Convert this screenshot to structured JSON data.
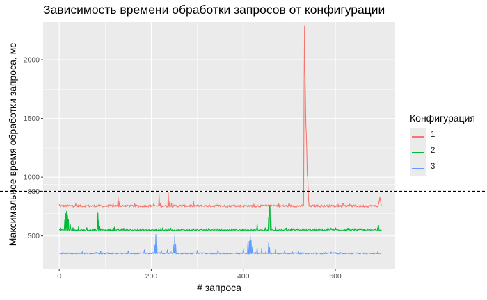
{
  "chart_data": {
    "type": "line",
    "title": "Зависимость времени обработки запросов от конфигурации",
    "xlabel": "# запроса",
    "ylabel": "Максимальное время обработки запроса, мс",
    "xlim": [
      -35,
      730
    ],
    "ylim": [
      220,
      2320
    ],
    "x_ticks": [
      0,
      200,
      400,
      600
    ],
    "y_ticks": [
      500,
      880,
      1000,
      1500,
      2000
    ],
    "y_tick_labels": [
      "500",
      "880",
      "1000",
      "1500",
      "2000"
    ],
    "reference_line": {
      "y": 880,
      "style": "dashed",
      "color": "#000000"
    },
    "grid": true,
    "background": "#ebebeb",
    "legend": {
      "title": "Конфигурация",
      "position": "right"
    },
    "n_points": 701,
    "series": [
      {
        "name": "1",
        "color": "#f8766d",
        "baseline": 755,
        "noise": 10,
        "spikes": [
          [
            0,
            770
          ],
          [
            3,
            745
          ],
          [
            128,
            830
          ],
          [
            130,
            790
          ],
          [
            217,
            855
          ],
          [
            220,
            780
          ],
          [
            237,
            870
          ],
          [
            240,
            790
          ],
          [
            532,
            1720
          ],
          [
            533,
            2290
          ],
          [
            534,
            1900
          ],
          [
            535,
            1700
          ],
          [
            536,
            1440
          ],
          [
            537,
            1360
          ],
          [
            538,
            1220
          ],
          [
            539,
            1020
          ],
          [
            540,
            1000
          ],
          [
            541,
            880
          ],
          [
            542,
            800
          ],
          [
            694,
            770
          ],
          [
            695,
            790
          ],
          [
            696,
            810
          ],
          [
            697,
            830
          ],
          [
            698,
            800
          ],
          [
            699,
            780
          ]
        ]
      },
      {
        "name": "2",
        "color": "#00ba38",
        "baseline": 550,
        "noise": 6,
        "spikes": [
          [
            3,
            570
          ],
          [
            5,
            555
          ],
          [
            12,
            635
          ],
          [
            14,
            690
          ],
          [
            16,
            710
          ],
          [
            18,
            680
          ],
          [
            20,
            640
          ],
          [
            24,
            600
          ],
          [
            30,
            570
          ],
          [
            42,
            580
          ],
          [
            60,
            570
          ],
          [
            84,
            700
          ],
          [
            86,
            630
          ],
          [
            88,
            580
          ],
          [
            120,
            575
          ],
          [
            225,
            570
          ],
          [
            430,
            600
          ],
          [
            455,
            660
          ],
          [
            457,
            760
          ],
          [
            458,
            740
          ],
          [
            460,
            640
          ],
          [
            470,
            575
          ],
          [
            600,
            570
          ],
          [
            693,
            580
          ],
          [
            694,
            590
          ]
        ]
      },
      {
        "name": "3",
        "color": "#619cff",
        "baseline": 350,
        "noise": 5,
        "spikes": [
          [
            90,
            370
          ],
          [
            150,
            372
          ],
          [
            185,
            380
          ],
          [
            208,
            420
          ],
          [
            210,
            512
          ],
          [
            212,
            430
          ],
          [
            222,
            375
          ],
          [
            235,
            380
          ],
          [
            248,
            420
          ],
          [
            251,
            500
          ],
          [
            253,
            430
          ],
          [
            300,
            375
          ],
          [
            345,
            380
          ],
          [
            400,
            395
          ],
          [
            410,
            440
          ],
          [
            413,
            455
          ],
          [
            415,
            510
          ],
          [
            417,
            460
          ],
          [
            420,
            410
          ],
          [
            430,
            400
          ],
          [
            440,
            395
          ],
          [
            455,
            440
          ],
          [
            457,
            400
          ],
          [
            470,
            385
          ],
          [
            490,
            375
          ],
          [
            520,
            370
          ]
        ]
      }
    ]
  }
}
